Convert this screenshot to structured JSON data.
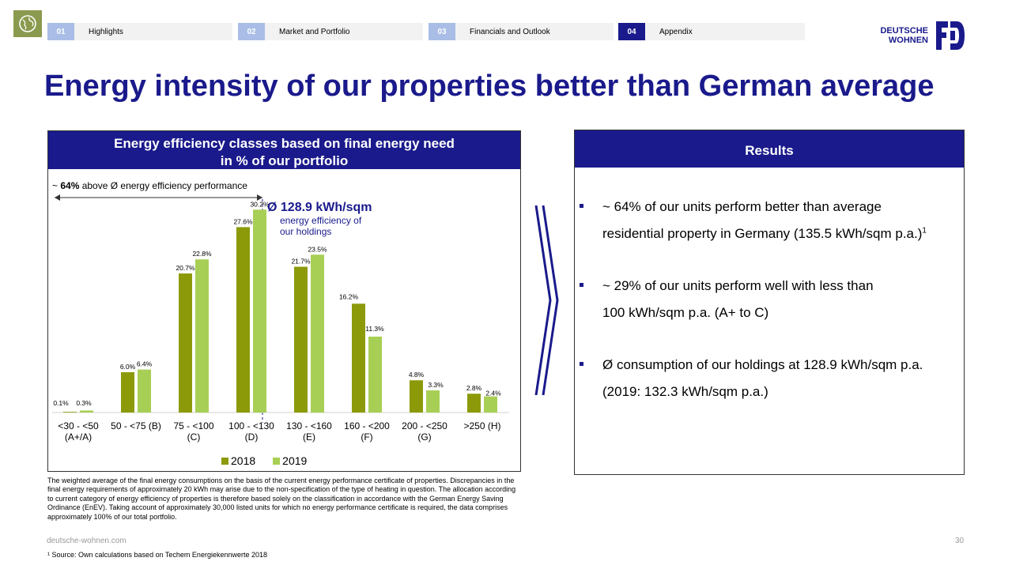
{
  "nav": [
    {
      "num": "01",
      "label": "Highlights"
    },
    {
      "num": "02",
      "label": "Market and Portfolio"
    },
    {
      "num": "03",
      "label": "Financials and Outlook"
    },
    {
      "num": "04",
      "label": "Appendix",
      "active": true
    }
  ],
  "brand": {
    "line1": "DEUTSCHE",
    "line2": "WOHNEN",
    "color": "#1a1a8c"
  },
  "title": "Energy intensity of our properties better than German average",
  "left_panel": {
    "header_line1": "Energy efficiency classes based on final energy need",
    "header_line2": "in % of our portfolio",
    "above_prefix": "~ ",
    "above_bold": "64%",
    "above_rest": " above Ø energy efficiency performance",
    "avg_value": "Ø 128.9 kWh/sqm",
    "avg_desc1": "energy efficiency of",
    "avg_desc2": "our holdings"
  },
  "chart_data": {
    "type": "bar",
    "categories": [
      "<30 - <50 (A+/A)",
      "50 - <75 (B)",
      "75 - <100 (C)",
      "100 - <130 (D)",
      "130 - <160 (E)",
      "160 - <200 (F)",
      "200 - <250 (G)",
      ">250 (H)"
    ],
    "category_lines": [
      [
        "<30 - <50",
        "(A+/A)"
      ],
      [
        "50 - <75 (B)",
        ""
      ],
      [
        "75 - <100",
        "(C)"
      ],
      [
        "100 - <130",
        "(D)"
      ],
      [
        "130 - <160",
        "(E)"
      ],
      [
        "160 - <200",
        "(F)"
      ],
      [
        "200 - <250",
        "(G)"
      ],
      [
        ">250 (H)",
        ""
      ]
    ],
    "series": [
      {
        "name": "2018",
        "color": "#8c9a0a",
        "values": [
          0.1,
          6.0,
          20.7,
          27.6,
          21.7,
          16.2,
          4.8,
          2.8
        ],
        "labels": [
          "0.1%",
          "6.0%",
          "20.7%",
          "27.6%",
          "21.7%",
          "16.2%",
          "4.8%",
          "2.8%"
        ]
      },
      {
        "name": "2019",
        "color": "#a8cf55",
        "values": [
          0.3,
          6.4,
          22.8,
          30.2,
          23.5,
          11.3,
          3.3,
          2.4
        ],
        "labels": [
          "0.3%",
          "6.4%",
          "22.8%",
          "30.2%",
          "23.5%",
          "11.3%",
          "3.3%",
          "2.4%"
        ]
      }
    ],
    "ylim": [
      0,
      32
    ]
  },
  "results": {
    "header": "Results",
    "b1_l1": "~ 64% of our units perform better than average",
    "b1_l2": "residential property in Germany (135.5 kWh/sqm p.a.)",
    "b1_sup": "1",
    "b2_l1": "~ 29% of our units perform well with less than",
    "b2_l2": "100 kWh/sqm p.a. (A+ to C)",
    "b3_l1": "Ø consumption of our holdings at 128.9 kWh/sqm p.a.",
    "b3_l2": "(2019: 132.3 kWh/sqm p.a.)"
  },
  "footnote": "The weighted average of the final energy consumptions on the basis of the current energy performance certificate of properties. Discrepancies in the final energy requirements of approximately 20 kWh may arise due to the non-specification of the type of heating in question. The allocation according to current category of energy efficiency of properties is therefore based solely on the classification in accordance with the German Energy Saving Ordinance (EnEV). Taking account of approximately 30,000 listed units for which no energy performance certificate is required, the data comprises approximately 100% of our total portfolio.",
  "url": "deutsche-wohnen.com",
  "page_number": "30",
  "source": "¹ Source: Own calculations based on Techem Energiekennwerte 2018"
}
